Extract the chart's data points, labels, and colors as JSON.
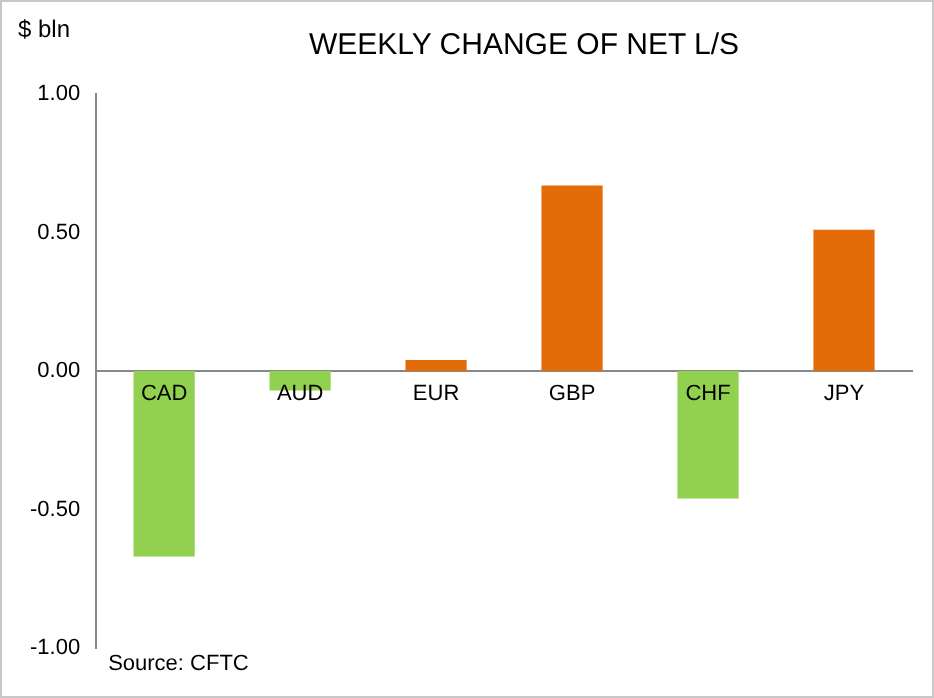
{
  "chart_data": {
    "type": "bar",
    "title": "WEEKLY CHANGE OF NET L/S",
    "ylabel": "$ bln",
    "categories": [
      "CAD",
      "AUD",
      "EUR",
      "GBP",
      "CHF",
      "JPY"
    ],
    "values": [
      -0.67,
      -0.07,
      0.04,
      0.67,
      -0.46,
      0.51
    ],
    "colors": [
      "#92d050",
      "#92d050",
      "#e36c09",
      "#e36c09",
      "#92d050",
      "#e36c09"
    ],
    "ylim": [
      -1,
      1
    ],
    "yticks": [
      {
        "value": -1,
        "label": "-1.00"
      },
      {
        "value": -0.5,
        "label": "-0.50"
      },
      {
        "value": 0,
        "label": "0.00"
      },
      {
        "value": 0.5,
        "label": "0.50"
      },
      {
        "value": 1,
        "label": "1.00"
      }
    ],
    "grid": false,
    "legend": false,
    "annotations": [
      "Source: CFTC"
    ]
  }
}
